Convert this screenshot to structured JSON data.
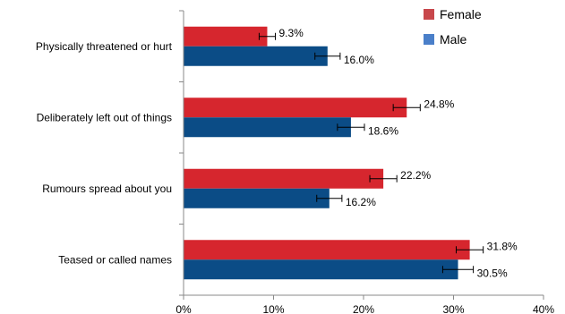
{
  "chart_data": {
    "type": "bar",
    "orientation": "horizontal",
    "categories": [
      "Physically threatened or hurt",
      "Deliberately left out of things",
      "Rumours spread about you",
      "Teased or called names"
    ],
    "series": [
      {
        "name": "Female",
        "color": "#d6262e",
        "values": [
          9.3,
          24.8,
          22.2,
          31.8
        ],
        "labels": [
          "9.3%",
          "24.8%",
          "22.2%",
          "31.8%"
        ],
        "error": [
          0.9,
          1.5,
          1.5,
          1.5
        ]
      },
      {
        "name": "Male",
        "color": "#0b4c86",
        "values": [
          16.0,
          18.6,
          16.2,
          30.5
        ],
        "labels": [
          "16.0%",
          "18.6%",
          "16.2%",
          "30.5%"
        ],
        "error": [
          1.4,
          1.5,
          1.4,
          1.7
        ]
      }
    ],
    "xlim": [
      0,
      40
    ],
    "xticks": [
      0,
      10,
      20,
      30,
      40
    ],
    "xtick_labels": [
      "0%",
      "10%",
      "20%",
      "30%",
      "40%"
    ],
    "title": "",
    "xlabel": "",
    "ylabel": "",
    "grid": false,
    "legend_position": "top-right",
    "legend_colors": {
      "Female": "#c8474b",
      "Male": "#4a7fc9"
    }
  }
}
